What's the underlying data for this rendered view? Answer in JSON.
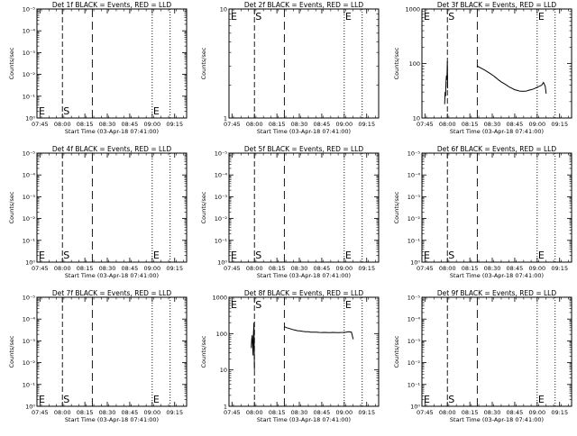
{
  "x_tick_labels": [
    "07:45",
    "08:00",
    "08:15",
    "08:30",
    "08:45",
    "09:00",
    "09:15"
  ],
  "x_axis_label": "Start Time (03-Apr-18 07:41:00)",
  "y_axis_label": "Counts/sec",
  "line_colors": {
    "events": "#000000",
    "lld": "#ff0000"
  },
  "chart_data": [
    {
      "type": "line",
      "title": "Det 1f BLACK = Events, RED = LLD",
      "scale": "log",
      "y_ticks": [
        "10⁰",
        "10⁻¹",
        "10⁻²",
        "10⁻³",
        "10⁻⁴",
        "10⁻⁵"
      ],
      "markers": {
        "start": "S",
        "end": "E"
      },
      "series": []
    },
    {
      "type": "line",
      "title": "Det 2f BLACK = Events, RED = LLD",
      "scale": "log",
      "y_ticks": [
        "1",
        "10"
      ],
      "markers": {
        "start": "S",
        "end": "E"
      },
      "series": []
    },
    {
      "type": "line",
      "title": "Det 3f BLACK = Events, RED = LLD",
      "scale": "log",
      "y_ticks": [
        "10",
        "100",
        "1000"
      ],
      "markers": {
        "start": "S",
        "end": "E"
      },
      "series": [
        {
          "x": [
            7.97,
            7.975,
            7.98,
            7.985,
            7.99,
            7.995,
            8.0,
            8.003
          ],
          "y": [
            18,
            30,
            25,
            45,
            60,
            50,
            110,
            35
          ]
        },
        {
          "x": [
            8.333,
            8.36,
            8.39,
            8.42,
            8.45,
            8.48,
            8.51,
            8.54,
            8.57,
            8.6,
            8.63,
            8.66,
            8.69,
            8.72,
            8.75,
            8.78,
            8.81,
            8.84,
            8.87,
            8.9,
            8.93,
            8.96,
            8.99,
            9.02,
            9.05,
            9.07,
            9.09,
            9.1
          ],
          "y": [
            90,
            85,
            80,
            75,
            70,
            65,
            60,
            55,
            50,
            46,
            43,
            40,
            37,
            35,
            33,
            32,
            31,
            31,
            31,
            32,
            33,
            34,
            36,
            38,
            40,
            45,
            38,
            28
          ]
        }
      ]
    },
    {
      "type": "line",
      "title": "Det 4f BLACK = Events, RED = LLD",
      "scale": "log",
      "y_ticks": [
        "10⁰",
        "10⁻¹",
        "10⁻²",
        "10⁻³",
        "10⁻⁴",
        "10⁻⁵"
      ],
      "markers": {
        "start": "S",
        "end": "E"
      },
      "series": []
    },
    {
      "type": "line",
      "title": "Det 5f BLACK = Events, RED = LLD",
      "scale": "log",
      "y_ticks": [
        "10⁰",
        "10⁻¹",
        "10⁻²",
        "10⁻³",
        "10⁻⁴",
        "10⁻⁵"
      ],
      "markers": {
        "start": "S",
        "end": "E"
      },
      "series": []
    },
    {
      "type": "line",
      "title": "Det 6f BLACK = Events, RED = LLD",
      "scale": "log",
      "y_ticks": [
        "10⁰",
        "10⁻¹",
        "10⁻²",
        "10⁻³",
        "10⁻⁴",
        "10⁻⁵"
      ],
      "markers": {
        "start": "S",
        "end": "E"
      },
      "series": []
    },
    {
      "type": "line",
      "title": "Det 7f BLACK = Events, RED = LLD",
      "scale": "log",
      "y_ticks": [
        "10⁰",
        "10⁻¹",
        "10⁻²",
        "10⁻³",
        "10⁻⁴",
        "10⁻⁵"
      ],
      "markers": {
        "start": "S",
        "end": "E"
      },
      "series": []
    },
    {
      "type": "line",
      "title": "Det 8f BLACK = Events, RED = LLD",
      "scale": "log",
      "y_ticks": [
        "1",
        "10",
        "100",
        "1000"
      ],
      "markers": {
        "start": "S",
        "end": "E"
      },
      "series": [
        {
          "x": [
            7.965,
            7.97,
            7.975,
            7.98,
            7.985,
            7.99,
            7.995,
            8.0
          ],
          "y": [
            40,
            70,
            90,
            50,
            25,
            110,
            200,
            10
          ]
        },
        {
          "x": [
            8.333,
            8.36,
            8.39,
            8.42,
            8.45,
            8.48,
            8.51,
            8.54,
            8.57,
            8.6,
            8.63,
            8.66,
            8.69,
            8.72,
            8.75,
            8.78,
            8.81,
            8.84,
            8.87,
            8.9,
            8.93,
            8.96,
            8.99,
            9.02,
            9.05,
            9.08,
            9.1
          ],
          "y": [
            155,
            145,
            138,
            130,
            125,
            120,
            118,
            115,
            113,
            112,
            110,
            110,
            109,
            108,
            107,
            108,
            107,
            106,
            108,
            107,
            106,
            107,
            108,
            110,
            112,
            110,
            70
          ]
        }
      ]
    },
    {
      "type": "line",
      "title": "Det 9f BLACK = Events, RED = LLD",
      "scale": "log",
      "y_ticks": [
        "10⁰",
        "10⁻¹",
        "10⁻²",
        "10⁻³",
        "10⁻⁴",
        "10⁻⁵"
      ],
      "markers": {
        "start": "S",
        "end": "E"
      },
      "series": []
    }
  ]
}
